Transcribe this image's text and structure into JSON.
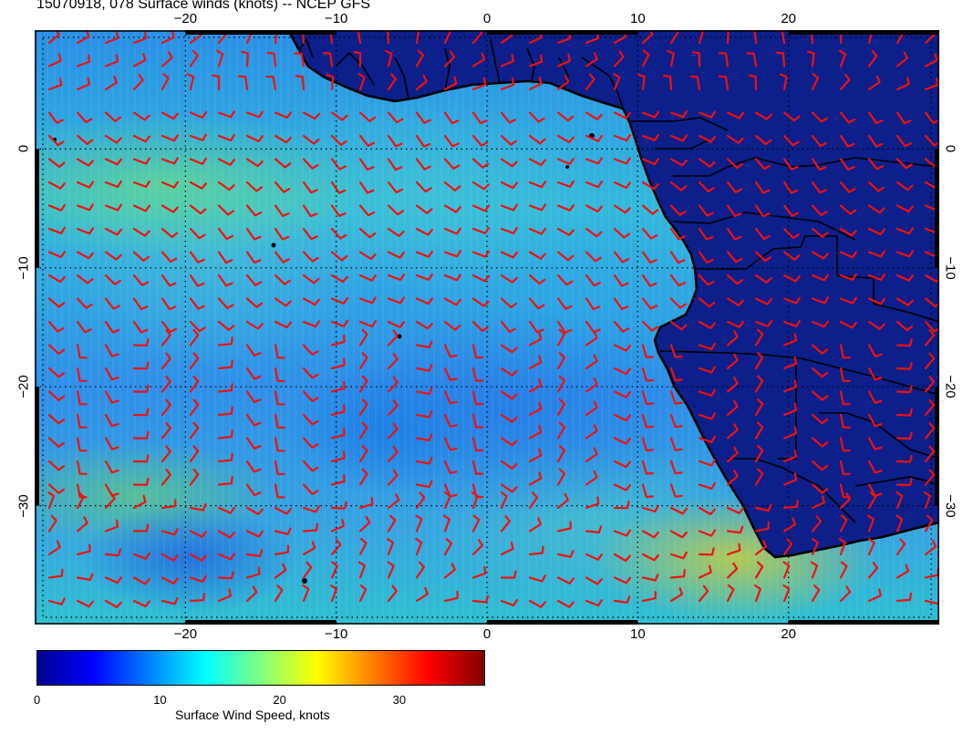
{
  "title": "15070918, 078 Surface winds (knots) -- NCEP GFS",
  "map": {
    "lon_range": [
      -30,
      30
    ],
    "lat_range": [
      -40,
      10
    ],
    "lon_ticks": [
      {
        "value": -20,
        "label": "−20"
      },
      {
        "value": -10,
        "label": "−10"
      },
      {
        "value": 0,
        "label": "0"
      },
      {
        "value": 10,
        "label": "10"
      },
      {
        "value": 20,
        "label": "20"
      }
    ],
    "lat_ticks": [
      {
        "value": 0,
        "label": "0"
      },
      {
        "value": -10,
        "label": "−10"
      },
      {
        "value": -20,
        "label": "−20"
      },
      {
        "value": -30,
        "label": "−30"
      }
    ],
    "gridlines": "dotted",
    "land_color": "#0c1f8a",
    "barb_color": "#ee1111",
    "border_color": "#000000"
  },
  "colorbar": {
    "title": "Surface Wind Speed, knots",
    "ticks": [
      {
        "value": 0,
        "label": "0"
      },
      {
        "value": 10,
        "label": "10"
      },
      {
        "value": 20,
        "label": "20"
      },
      {
        "value": 30,
        "label": "30"
      }
    ],
    "range": [
      0,
      37.5
    ],
    "colormap": [
      "#00008f",
      "#0000ff",
      "#0080ff",
      "#00ffff",
      "#80ff80",
      "#ffff00",
      "#ff8000",
      "#ff0000",
      "#800000"
    ]
  }
}
